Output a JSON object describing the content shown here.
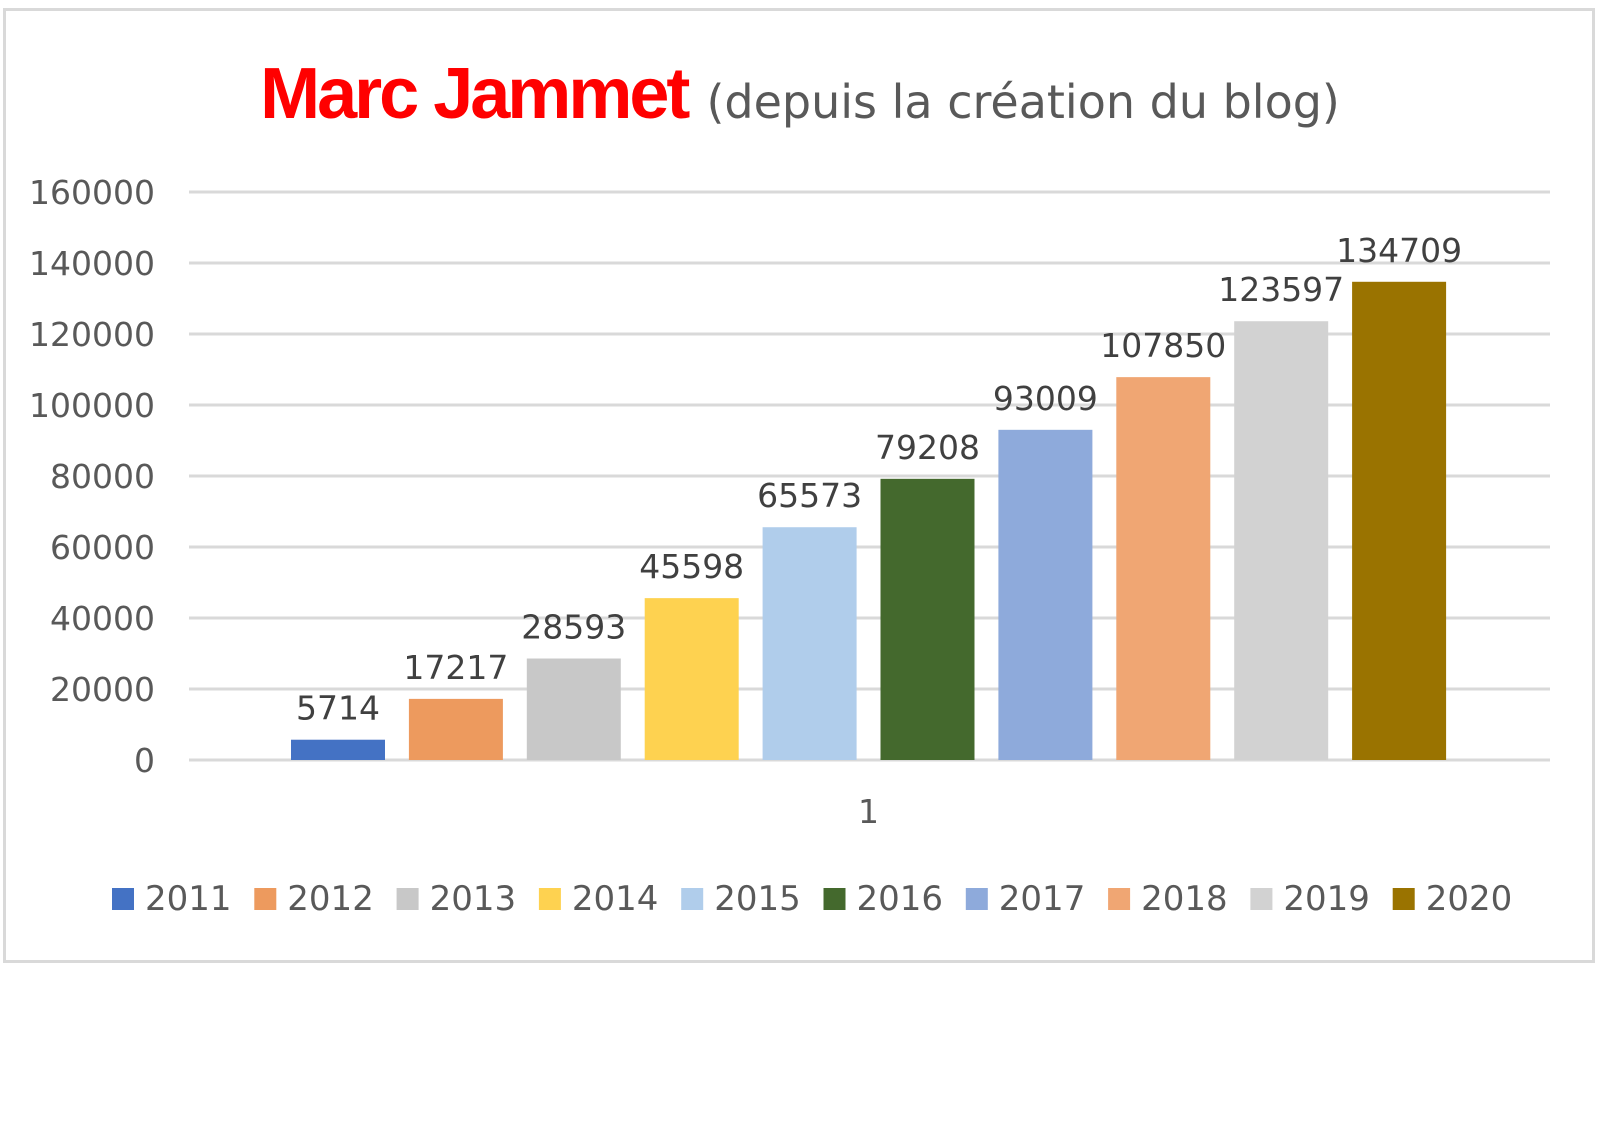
{
  "chart_data": {
    "type": "bar",
    "title_main": "Marc Jammet",
    "title_sub": "(depuis la création du blog)",
    "title_main_color": "#ff0000",
    "categories": [
      "1"
    ],
    "series": [
      {
        "name": "2011",
        "value": 5714,
        "color": "#4472c4"
      },
      {
        "name": "2012",
        "value": 17217,
        "color": "#ed9a5e"
      },
      {
        "name": "2013",
        "value": 28593,
        "color": "#c8c8c8"
      },
      {
        "name": "2014",
        "value": 45598,
        "color": "#fed250"
      },
      {
        "name": "2015",
        "value": 65573,
        "color": "#b0cdeb"
      },
      {
        "name": "2016",
        "value": 79208,
        "color": "#44692d"
      },
      {
        "name": "2017",
        "value": 93009,
        "color": "#8eaadb"
      },
      {
        "name": "2018",
        "value": 107850,
        "color": "#f0a673"
      },
      {
        "name": "2019",
        "value": 123597,
        "color": "#d2d2d2"
      },
      {
        "name": "2020",
        "value": 134709,
        "color": "#9a7300"
      }
    ],
    "ylim": [
      0,
      160000
    ],
    "yticks": [
      0,
      20000,
      40000,
      60000,
      80000,
      100000,
      120000,
      140000,
      160000
    ],
    "xlabel": "",
    "ylabel": "",
    "grid": true,
    "legend_position": "bottom",
    "data_labels": true
  }
}
